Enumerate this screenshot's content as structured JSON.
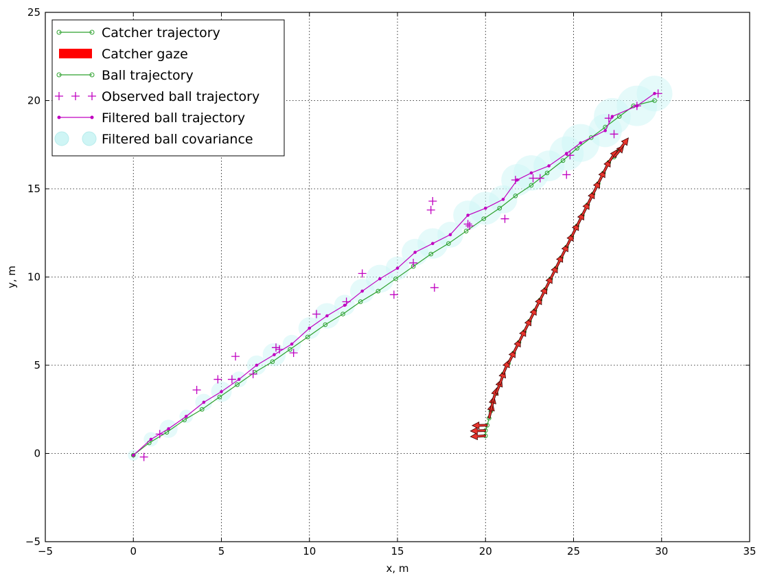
{
  "chart_data": {
    "type": "line",
    "title": "",
    "xlabel": "x, m",
    "ylabel": "y, m",
    "xlim": [
      -5,
      35
    ],
    "ylim": [
      -5,
      25
    ],
    "xticks": [
      "−5",
      "0",
      "5",
      "10",
      "15",
      "20",
      "25",
      "30",
      "35"
    ],
    "yticks": [
      "−5",
      "0",
      "5",
      "10",
      "15",
      "20",
      "25"
    ],
    "xtick_values": [
      -5,
      0,
      5,
      10,
      15,
      20,
      25,
      30,
      35
    ],
    "ytick_values": [
      -5,
      0,
      5,
      10,
      15,
      20,
      25
    ],
    "grid": true,
    "legend_position": "top-left",
    "legend": [
      {
        "label": "Catcher trajectory",
        "kind": "line-open-marker",
        "color": "#2ca02c"
      },
      {
        "label": "Catcher gaze",
        "kind": "patch",
        "color": "#ff0000"
      },
      {
        "label": "Ball trajectory",
        "kind": "line-open-marker",
        "color": "#2ca02c"
      },
      {
        "label": "Observed ball trajectory",
        "kind": "plus",
        "color": "#c000c0"
      },
      {
        "label": "Filtered ball trajectory",
        "kind": "line-dot",
        "color": "#c000c0"
      },
      {
        "label": "Filtered ball covariance",
        "kind": "circle",
        "color": "#cff5f5"
      }
    ],
    "series": [
      {
        "name": "Ball trajectory",
        "color": "#2ca02c",
        "x": [
          0,
          0.9,
          1.9,
          2.9,
          3.9,
          4.9,
          5.9,
          6.9,
          7.9,
          8.9,
          9.9,
          10.9,
          11.9,
          12.9,
          13.9,
          14.9,
          15.9,
          16.9,
          17.9,
          18.9,
          19.9,
          20.8,
          21.7,
          22.6,
          23.5,
          24.4,
          25.2,
          26.0,
          26.8,
          27.6,
          28.4,
          29.6
        ],
        "y": [
          -0.1,
          0.6,
          1.2,
          1.9,
          2.5,
          3.2,
          3.9,
          4.6,
          5.2,
          5.9,
          6.6,
          7.3,
          7.9,
          8.6,
          9.2,
          9.9,
          10.6,
          11.3,
          11.9,
          12.6,
          13.3,
          13.9,
          14.6,
          15.2,
          15.9,
          16.6,
          17.3,
          17.9,
          18.5,
          19.1,
          19.7,
          20.0
        ]
      },
      {
        "name": "Filtered ball trajectory",
        "color": "#c000c0",
        "x": [
          0,
          1.0,
          2.0,
          3.0,
          4.0,
          5.0,
          6.0,
          7.0,
          8.0,
          9.0,
          10.0,
          11.0,
          12.0,
          13.0,
          14.0,
          15.0,
          16.0,
          17.0,
          18.0,
          19.0,
          20.0,
          21.0,
          21.8,
          22.6,
          23.6,
          24.6,
          25.4,
          26.8,
          27.2,
          28.6,
          29.6
        ],
        "y": [
          -0.1,
          0.8,
          1.4,
          2.1,
          2.9,
          3.5,
          4.2,
          5.0,
          5.6,
          6.2,
          7.1,
          7.8,
          8.4,
          9.2,
          9.9,
          10.5,
          11.4,
          11.9,
          12.4,
          13.5,
          13.9,
          14.4,
          15.5,
          15.9,
          16.3,
          17.0,
          17.6,
          18.3,
          19.1,
          19.7,
          20.4
        ]
      },
      {
        "name": "Observed ball trajectory",
        "color": "#c000c0",
        "x": [
          0.6,
          1.5,
          3.6,
          4.8,
          5.6,
          5.8,
          6.8,
          8.1,
          8.3,
          9.1,
          10.4,
          12.1,
          13.0,
          14.8,
          15.9,
          16.9,
          17.0,
          17.1,
          19.0,
          19.1,
          21.1,
          21.7,
          22.7,
          23.1,
          24.6,
          24.8,
          27.0,
          27.3,
          28.6,
          29.8
        ],
        "y": [
          -0.2,
          1.1,
          3.6,
          4.2,
          4.2,
          5.5,
          4.5,
          6.0,
          5.9,
          5.7,
          7.9,
          8.6,
          10.2,
          9.0,
          10.8,
          13.8,
          14.3,
          9.4,
          13.0,
          12.9,
          13.3,
          15.5,
          15.6,
          15.6,
          15.8,
          16.9,
          19.0,
          18.1,
          19.7,
          20.4
        ]
      },
      {
        "name": "Catcher trajectory",
        "color": "#2ca02c",
        "x": [
          20.0,
          20.0,
          20.1,
          20.2,
          20.3,
          20.4,
          20.6,
          20.8,
          21.0,
          21.3,
          21.6,
          21.9,
          22.2,
          22.5,
          22.8,
          23.1,
          23.4,
          23.7,
          24.0,
          24.3,
          24.6,
          24.9,
          25.2,
          25.5,
          25.8,
          26.1,
          26.4,
          26.7,
          27.0,
          27.3,
          27.6
        ],
        "y": [
          1.0,
          1.3,
          1.6,
          2.0,
          2.4,
          2.9,
          3.4,
          3.9,
          4.5,
          5.1,
          5.7,
          6.3,
          6.9,
          7.5,
          8.1,
          8.7,
          9.3,
          9.9,
          10.5,
          11.1,
          11.7,
          12.3,
          12.9,
          13.5,
          14.1,
          14.7,
          15.3,
          15.9,
          16.5,
          16.8,
          17.2
        ]
      }
    ]
  }
}
